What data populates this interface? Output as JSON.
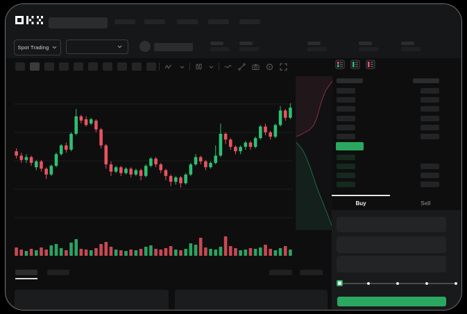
{
  "app": {
    "brand": "OKX"
  },
  "market_bar": {
    "selector_label": "Spot Trading"
  },
  "chart_toolbar": {
    "icons": [
      "zigzag-line-icon",
      "chevron-down-icon",
      "candlestick-type-icon",
      "chevron-down-icon",
      "wave-indicator-icon",
      "trendline-tool-icon",
      "camera-icon",
      "target-icon",
      "fullscreen-icon"
    ]
  },
  "orderbook": {
    "view_icons": [
      "orderbook-all-icon",
      "orderbook-bids-icon",
      "orderbook-asks-icon"
    ],
    "ask_rows": 6,
    "bid_rows": 4,
    "last_price_highlight": "green"
  },
  "trade_panel": {
    "buy_label": "Buy",
    "sell_label": "Sell",
    "active_tab": "Buy",
    "slider_stops": 5,
    "slider_value_percent": 0
  },
  "colors": {
    "up_green": "#2ec071",
    "down_red": "#ea5360",
    "accent_green": "#2aa85f",
    "tab_indicator": "#e8e8e8",
    "bid_row_tint": "#15291d"
  },
  "chart_data": [
    {
      "type": "candlestick",
      "title": "",
      "ylim": [
        30,
        95
      ],
      "grid": true,
      "candles": [
        [
          58,
          60,
          53,
          55
        ],
        [
          55,
          57,
          50,
          52
        ],
        [
          52,
          56,
          50,
          54
        ],
        [
          54,
          55,
          48,
          50
        ],
        [
          47,
          52,
          45,
          51
        ],
        [
          51,
          52,
          44,
          46
        ],
        [
          46,
          47,
          39,
          42
        ],
        [
          42,
          49,
          41,
          48
        ],
        [
          48,
          57,
          47,
          56
        ],
        [
          56,
          63,
          55,
          62
        ],
        [
          62,
          64,
          57,
          59
        ],
        [
          59,
          71,
          58,
          70
        ],
        [
          70,
          87,
          69,
          82
        ],
        [
          82,
          83,
          77,
          79
        ],
        [
          80,
          82,
          75,
          76
        ],
        [
          77,
          81,
          76,
          80
        ],
        [
          79,
          80,
          71,
          73
        ],
        [
          73,
          74,
          60,
          62
        ],
        [
          62,
          63,
          46,
          49
        ],
        [
          49,
          51,
          41,
          44
        ],
        [
          44,
          48,
          43,
          47
        ],
        [
          47,
          48,
          41,
          43
        ],
        [
          43,
          47,
          42,
          46
        ],
        [
          46,
          47,
          40,
          42
        ],
        [
          42,
          46,
          41,
          45
        ],
        [
          45,
          46,
          38,
          41
        ],
        [
          41,
          49,
          40,
          48
        ],
        [
          48,
          54,
          47,
          53
        ],
        [
          53,
          54,
          47,
          49
        ],
        [
          49,
          50,
          43,
          45
        ],
        [
          45,
          46,
          38,
          41
        ],
        [
          41,
          42,
          34,
          37
        ],
        [
          37,
          41,
          35,
          40
        ],
        [
          40,
          41,
          33,
          36
        ],
        [
          36,
          43,
          35,
          42
        ],
        [
          42,
          50,
          41,
          49
        ],
        [
          49,
          56,
          48,
          54
        ],
        [
          54,
          55,
          49,
          51
        ],
        [
          51,
          52,
          45,
          47
        ],
        [
          47,
          51,
          46,
          50
        ],
        [
          50,
          62,
          49,
          55
        ],
        [
          55,
          77,
          54,
          70
        ],
        [
          70,
          71,
          63,
          66
        ],
        [
          66,
          67,
          59,
          61
        ],
        [
          61,
          62,
          56,
          58
        ],
        [
          58,
          62,
          56,
          61
        ],
        [
          61,
          65,
          59,
          64
        ],
        [
          64,
          65,
          59,
          61
        ],
        [
          61,
          68,
          60,
          67
        ],
        [
          67,
          76,
          66,
          75
        ],
        [
          75,
          77,
          69,
          71
        ],
        [
          71,
          72,
          66,
          68
        ],
        [
          68,
          77,
          67,
          76
        ],
        [
          76,
          89,
          75,
          86
        ],
        [
          86,
          87,
          79,
          81
        ],
        [
          81,
          91,
          80,
          88
        ]
      ]
    },
    {
      "type": "bar",
      "name": "volume",
      "values": [
        12,
        9,
        7,
        10,
        8,
        12,
        9,
        15,
        17,
        11,
        8,
        19,
        24,
        10,
        9,
        8,
        11,
        17,
        20,
        13,
        9,
        8,
        7,
        9,
        8,
        10,
        13,
        15,
        10,
        9,
        11,
        14,
        9,
        8,
        10,
        18,
        16,
        26,
        12,
        10,
        9,
        13,
        28,
        14,
        11,
        8,
        9,
        11,
        10,
        12,
        16,
        10,
        8,
        11,
        14,
        9
      ],
      "color_rule": "follows candle direction"
    },
    {
      "type": "area",
      "name": "depth",
      "ask_line": [
        [
          1.0,
          0.03
        ],
        [
          0.82,
          0.09
        ],
        [
          0.72,
          0.15
        ],
        [
          0.64,
          0.21
        ],
        [
          0.57,
          0.27
        ],
        [
          0.48,
          0.32
        ],
        [
          0.36,
          0.35
        ],
        [
          0.2,
          0.37
        ],
        [
          0.08,
          0.385
        ],
        [
          0.0,
          0.39
        ]
      ],
      "bid_line": [
        [
          0.0,
          0.43
        ],
        [
          0.08,
          0.45
        ],
        [
          0.18,
          0.48
        ],
        [
          0.28,
          0.53
        ],
        [
          0.38,
          0.59
        ],
        [
          0.48,
          0.66
        ],
        [
          0.58,
          0.73
        ],
        [
          0.7,
          0.8
        ],
        [
          0.82,
          0.87
        ],
        [
          0.92,
          0.93
        ],
        [
          1.0,
          0.98
        ]
      ]
    }
  ]
}
